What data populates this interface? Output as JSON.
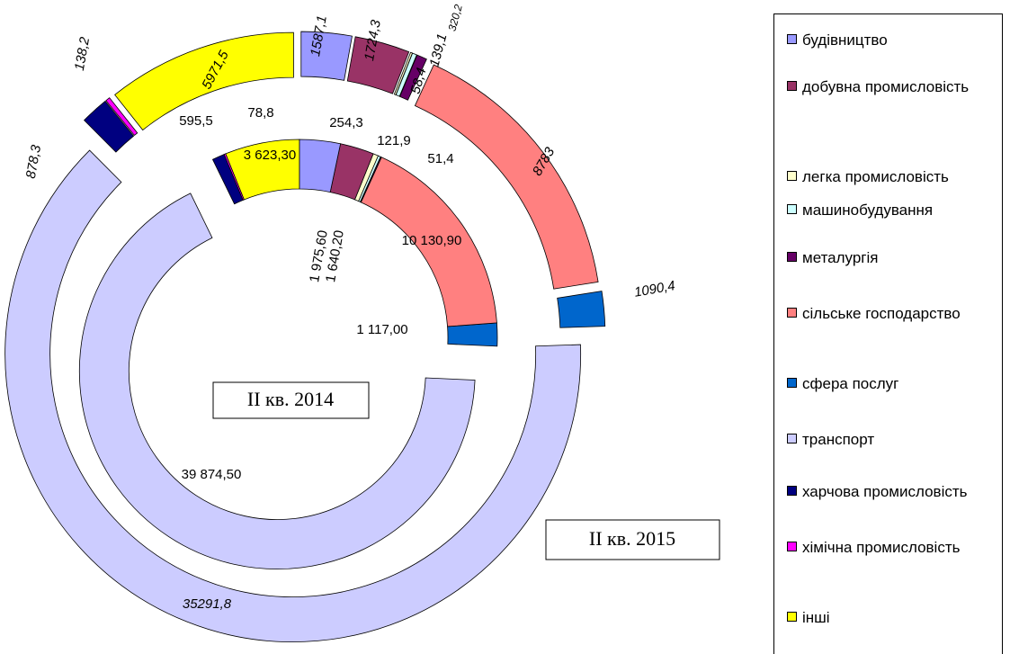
{
  "chart_data": {
    "type": "doughnut",
    "categories": [
      "будівництво",
      "добувна промисловість",
      "легка промисловість",
      "машинобудування",
      "металургія",
      "сільське господарство",
      "сфера послуг",
      "транспорт",
      "харчова промисловість",
      "хімічна промисловість",
      "інші"
    ],
    "colors": [
      "#9999ff",
      "#993366",
      "#ffffcc",
      "#ccffff",
      "#660066",
      "#ff8080",
      "#0066cc",
      "#ccccff",
      "#000080",
      "#ff00ff",
      "#ffff00"
    ],
    "series": [
      {
        "name": "II кв. 2014",
        "values": [
          1975.6,
          1640.2,
          254.3,
          121.9,
          51.4,
          10130.9,
          1117.0,
          39874.5,
          595.5,
          78.8,
          3623.3
        ],
        "value_labels": [
          "1 975,60",
          "1 640,20",
          "254,3",
          "121,9",
          "51,4",
          "10 130,90",
          "1 117,00",
          "39 874,50",
          "595,5",
          "78,8",
          "3 623,30"
        ]
      },
      {
        "name": "II кв. 2015",
        "values": [
          1587.1,
          1724.3,
          58.4,
          139.1,
          320.2,
          8783,
          1090.4,
          35291.8,
          878.3,
          138.2,
          5971.5
        ],
        "value_labels": [
          "1587,1",
          "1724,3",
          "58,4",
          "139,1",
          "320,2",
          "8783",
          "1090,4",
          "35291,8",
          "878,3",
          "138,2",
          "5971,5"
        ]
      }
    ],
    "legend": "right"
  }
}
